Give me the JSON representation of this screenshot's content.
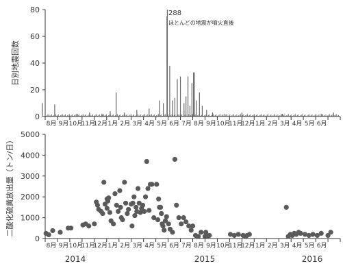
{
  "colors": {
    "bar": "#666666",
    "dot": "#5a5a5a",
    "axis": "#333333",
    "text": "#333333"
  },
  "months": [
    "8月",
    "9月",
    "10月",
    "11月",
    "12月",
    "1月",
    "2月",
    "3月",
    "4月",
    "5月",
    "6月",
    "7月",
    "8月",
    "9月",
    "10月",
    "11月",
    "12月",
    "1月",
    "2月",
    "3月",
    "4月",
    "5月",
    "6月"
  ],
  "years": [
    "2014",
    "2015",
    "2016"
  ],
  "chart_data": [
    {
      "type": "bar",
      "ylabel": "日別地震回数",
      "ylim": [
        0,
        80
      ],
      "yticks": [
        0,
        20,
        40,
        60,
        80
      ],
      "annotation_value": "288",
      "annotation_text": "ほとんどの地震が噴火直後",
      "series": [
        {
          "x": [
            "2014-07-25",
            "2014-08-25",
            "2014-10-20",
            "2014-11-20",
            "2014-12-20",
            "2015-01-10",
            "2015-01-25",
            "2015-02-15",
            "2015-03-15",
            "2015-04-15",
            "2015-05-10",
            "2015-05-20",
            "2015-05-29",
            "2015-05-30",
            "2015-06-05",
            "2015-06-12",
            "2015-06-18",
            "2015-06-24",
            "2015-07-01",
            "2015-07-10",
            "2015-07-15",
            "2015-07-20",
            "2015-07-25",
            "2015-07-30",
            "2015-08-03",
            "2015-08-05",
            "2015-08-10",
            "2015-08-18",
            "2015-08-25",
            "2015-09-05",
            "2015-09-20",
            "2015-10-20",
            "2015-12-01",
            "2016-03-10",
            "2016-06-15",
            "2016-07-15"
          ],
          "values": [
            10,
            9,
            2,
            3,
            2,
            4,
            18,
            3,
            5,
            6,
            12,
            10,
            75,
            80,
            38,
            12,
            14,
            28,
            30,
            10,
            15,
            30,
            8,
            25,
            33,
            33,
            12,
            18,
            8,
            5,
            3,
            2,
            3,
            2,
            2,
            3
          ]
        }
      ]
    },
    {
      "type": "scatter",
      "ylabel": "二酸化硫黄放出量（トン/日）",
      "ylim": [
        0,
        5000
      ],
      "yticks": [
        0,
        1000,
        2000,
        3000,
        4000,
        5000
      ],
      "series": [
        {
          "x": [
            "2014-08-03",
            "2014-08-10",
            "2014-08-20",
            "2014-09-08",
            "2014-09-28",
            "2014-10-04",
            "2014-11-03",
            "2014-11-10",
            "2014-11-18",
            "2014-12-01",
            "2014-12-06",
            "2014-12-09",
            "2014-12-12",
            "2014-12-18",
            "2014-12-22",
            "2014-12-25",
            "2014-12-28",
            "2015-01-02",
            "2015-01-02",
            "2015-01-04",
            "2015-01-06",
            "2015-01-09",
            "2015-01-12",
            "2015-01-18",
            "2015-01-22",
            "2015-01-26",
            "2015-01-30",
            "2015-02-03",
            "2015-02-05",
            "2015-02-07",
            "2015-02-10",
            "2015-02-15",
            "2015-02-18",
            "2015-02-22",
            "2015-02-25",
            "2015-03-01",
            "2015-03-03",
            "2015-03-05",
            "2015-03-08",
            "2015-03-10",
            "2015-03-13",
            "2015-03-15",
            "2015-03-18",
            "2015-03-21",
            "2015-03-24",
            "2015-03-27",
            "2015-03-30",
            "2015-04-03",
            "2015-04-06",
            "2015-04-09",
            "2015-04-12",
            "2015-04-15",
            "2015-04-18",
            "2015-04-22",
            "2015-04-27",
            "2015-05-03",
            "2015-05-06",
            "2015-05-08",
            "2015-05-10",
            "2015-05-13",
            "2015-05-15",
            "2015-05-17",
            "2015-05-19",
            "2015-05-22",
            "2015-05-25",
            "2015-05-28",
            "2015-06-02",
            "2015-06-06",
            "2015-06-12",
            "2015-06-18",
            "2015-06-22",
            "2015-06-28",
            "2015-07-03",
            "2015-07-09",
            "2015-07-15",
            "2015-07-22",
            "2015-07-28",
            "2015-08-01",
            "2015-08-08",
            "2015-08-15",
            "2015-08-22",
            "2015-09-01",
            "2015-09-03",
            "2015-09-05",
            "2015-09-07",
            "2015-09-12",
            "2015-11-03",
            "2015-11-13",
            "2015-11-23",
            "2015-12-04",
            "2015-12-10",
            "2015-12-14",
            "2015-12-20",
            "2016-03-20",
            "2016-03-25",
            "2016-03-30",
            "2016-04-04",
            "2016-04-09",
            "2016-04-14",
            "2016-04-20",
            "2016-04-25",
            "2016-05-05",
            "2016-05-15",
            "2016-05-25",
            "2016-06-05",
            "2016-06-15",
            "2016-07-01",
            "2016-07-08"
          ],
          "values": [
            250,
            180,
            380,
            300,
            500,
            500,
            650,
            700,
            600,
            700,
            1750,
            1600,
            1400,
            1300,
            1200,
            2700,
            1650,
            1900,
            1450,
            1800,
            1950,
            1250,
            850,
            700,
            2150,
            1600,
            1300,
            2300,
            1500,
            1000,
            900,
            2700,
            1700,
            1200,
            1400,
            1650,
            600,
            1700,
            2000,
            1100,
            1500,
            1300,
            2400,
            1700,
            1250,
            1450,
            1600,
            1300,
            2000,
            3700,
            2400,
            1350,
            2600,
            2600,
            1000,
            2600,
            900,
            1900,
            1500,
            1500,
            1200,
            700,
            600,
            400,
            850,
            1050,
            700,
            450,
            300,
            3800,
            1600,
            1000,
            700,
            1000,
            800,
            600,
            400,
            600,
            150,
            100,
            300,
            100,
            300,
            150,
            100,
            150,
            200,
            150,
            200,
            150,
            100,
            150,
            200,
            1500,
            100,
            200,
            150,
            250,
            200,
            300,
            250,
            200,
            150,
            200,
            150,
            250,
            150,
            300
          ]
        }
      ]
    }
  ]
}
